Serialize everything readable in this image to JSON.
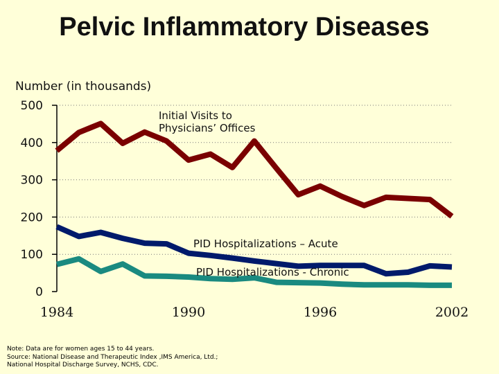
{
  "title": "Pelvic Inflammatory Diseases",
  "chart_data": {
    "type": "line",
    "title": "Pelvic Inflammatory Diseases",
    "ylabel": "Number  (in thousands)",
    "xlabel": "",
    "ylim": [
      0,
      500
    ],
    "xlim": [
      1984,
      2002
    ],
    "yticks": [
      0,
      100,
      200,
      300,
      400,
      500
    ],
    "xticks": [
      1984,
      1990,
      1996,
      2002
    ],
    "grid": "horizontal dotted",
    "x": [
      1984,
      1985,
      1986,
      1987,
      1988,
      1989,
      1990,
      1991,
      1992,
      1993,
      1994,
      1995,
      1996,
      1997,
      1998,
      1999,
      2000,
      2001,
      2002
    ],
    "series": [
      {
        "name": "Initial Visits to Physicians' Offices",
        "label_lines": [
          "Initial Visits to",
          "Physicians’ Offices"
        ],
        "color": "#7a0000",
        "values": [
          378,
          427,
          451,
          398,
          428,
          404,
          353,
          369,
          333,
          404,
          331,
          260,
          283,
          255,
          231,
          253,
          250,
          247,
          202
        ]
      },
      {
        "name": "PID Hospitalizations – Acute",
        "label_lines": [
          "PID Hospitalizations – Acute"
        ],
        "color": "#001a6b",
        "values": [
          174,
          148,
          159,
          143,
          130,
          128,
          103,
          97,
          90,
          82,
          75,
          68,
          70,
          70,
          70,
          48,
          52,
          69,
          66
        ]
      },
      {
        "name": "PID Hospitalizations - Chronic",
        "label_lines": [
          "PID Hospitalizations - Chronic"
        ],
        "color": "#1a8a80",
        "values": [
          73,
          88,
          54,
          74,
          42,
          41,
          39,
          35,
          33,
          37,
          25,
          24,
          23,
          20,
          18,
          18,
          18,
          17,
          17
        ]
      }
    ]
  },
  "note": {
    "lines": [
      "Note:  Data are for women  ages 15 to 44 years.",
      "Source:  National Disease and Therapeutic Index ,IMS America, Ltd.;",
      "National Hospital Discharge Survey, NCHS, CDC."
    ]
  }
}
